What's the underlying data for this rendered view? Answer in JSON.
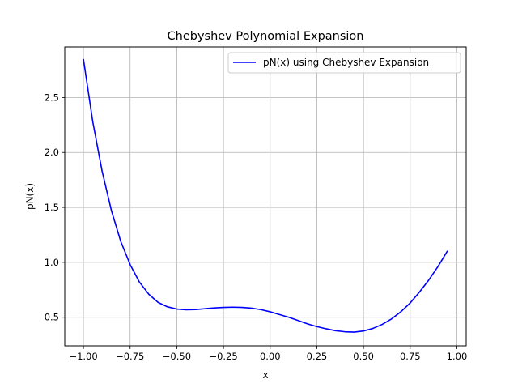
{
  "chart_data": {
    "type": "line",
    "title": "Chebyshev Polynomial Expansion",
    "xlabel": "x",
    "ylabel": "pN(x)",
    "xlim": [
      -1.1,
      1.05
    ],
    "ylim": [
      0.24,
      2.96
    ],
    "xticks": [
      -1.0,
      -0.75,
      -0.5,
      -0.25,
      0.0,
      0.25,
      0.5,
      0.75,
      1.0
    ],
    "xtick_labels": [
      "−1.00",
      "−0.75",
      "−0.50",
      "−0.25",
      "0.00",
      "0.25",
      "0.50",
      "0.75",
      "1.00"
    ],
    "yticks": [
      0.5,
      1.0,
      1.5,
      2.0,
      2.5
    ],
    "ytick_labels": [
      "0.5",
      "1.0",
      "1.5",
      "2.0",
      "2.5"
    ],
    "grid": true,
    "legend": {
      "placement": "upper right"
    },
    "series": [
      {
        "name": "pN(x) using Chebyshev Expansion",
        "color": "#0000ff",
        "x": [
          -1.0,
          -0.95,
          -0.9,
          -0.85,
          -0.8,
          -0.75,
          -0.7,
          -0.65,
          -0.6,
          -0.55,
          -0.5,
          -0.45,
          -0.4,
          -0.35,
          -0.3,
          -0.25,
          -0.2,
          -0.15,
          -0.1,
          -0.05,
          0.0,
          0.05,
          0.1,
          0.15,
          0.2,
          0.25,
          0.3,
          0.35,
          0.4,
          0.45,
          0.5,
          0.55,
          0.6,
          0.65,
          0.7,
          0.75,
          0.8,
          0.85,
          0.9,
          0.95
        ],
        "y": [
          2.85,
          2.28,
          1.83,
          1.47,
          1.19,
          0.98,
          0.82,
          0.71,
          0.635,
          0.595,
          0.575,
          0.568,
          0.57,
          0.578,
          0.585,
          0.59,
          0.592,
          0.59,
          0.583,
          0.57,
          0.55,
          0.525,
          0.5,
          0.47,
          0.44,
          0.415,
          0.395,
          0.378,
          0.368,
          0.365,
          0.375,
          0.398,
          0.435,
          0.485,
          0.55,
          0.63,
          0.73,
          0.84,
          0.965,
          1.105
        ]
      }
    ]
  }
}
